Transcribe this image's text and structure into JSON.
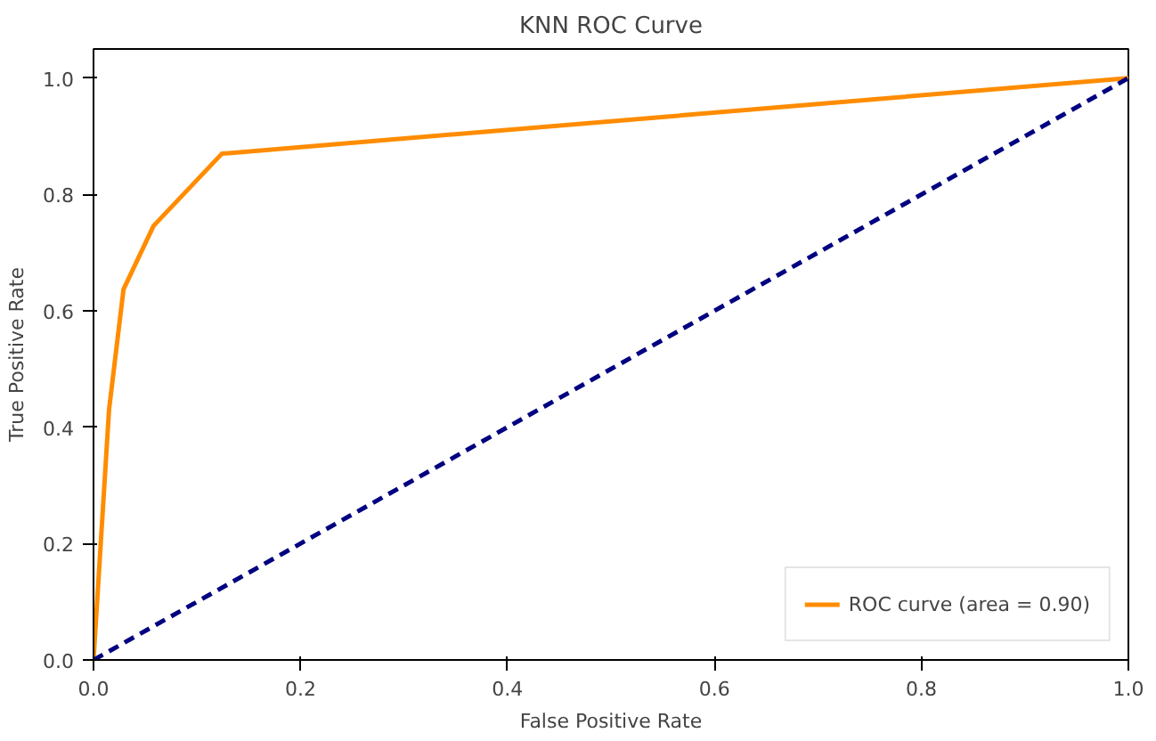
{
  "chart_data": {
    "type": "line",
    "title": "KNN ROC Curve",
    "xlabel": "False Positive Rate",
    "ylabel": "True Positive Rate",
    "xlim": [
      0,
      1
    ],
    "ylim": [
      0,
      1.05
    ],
    "xticks": [
      {
        "value": 0,
        "label": "0.0"
      },
      {
        "value": 0.2,
        "label": "0.2"
      },
      {
        "value": 0.4,
        "label": "0.4"
      },
      {
        "value": 0.6,
        "label": "0.6"
      },
      {
        "value": 0.8,
        "label": "0.8"
      },
      {
        "value": 1,
        "label": "1.0"
      }
    ],
    "yticks": [
      {
        "value": 0,
        "label": "0.0"
      },
      {
        "value": 0.2,
        "label": "0.2"
      },
      {
        "value": 0.4,
        "label": "0.4"
      },
      {
        "value": 0.6,
        "label": "0.6"
      },
      {
        "value": 0.8,
        "label": "0.8"
      },
      {
        "value": 1,
        "label": "1.0"
      }
    ],
    "series": [
      {
        "name": "ROC curve (area = 0.90)",
        "color": "#ff8c00",
        "x": [
          0,
          0.015,
          0.029,
          0.058,
          0.124,
          1
        ],
        "values": [
          0,
          0.43,
          0.637,
          0.746,
          0.87,
          1
        ],
        "line_style": "solid"
      },
      {
        "color": "#000080",
        "x": [
          0,
          1
        ],
        "values": [
          0,
          1
        ],
        "line_style": "dashed"
      }
    ],
    "grid": false,
    "legend": "bottom right",
    "marker": "none"
  }
}
